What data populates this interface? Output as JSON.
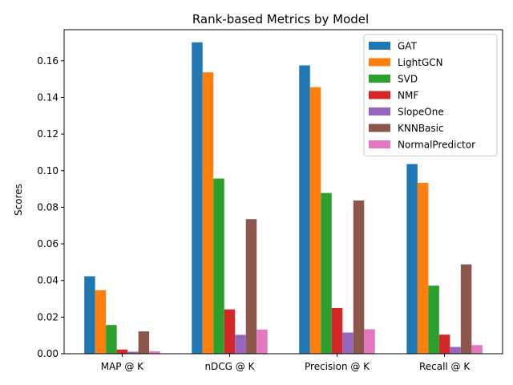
{
  "chart_data": {
    "type": "bar",
    "title": "Rank-based Metrics by Model",
    "xlabel": "",
    "ylabel": "Scores",
    "ylim": [
      0,
      0.177
    ],
    "yticks": [
      "0.00",
      "0.02",
      "0.04",
      "0.06",
      "0.08",
      "0.10",
      "0.12",
      "0.14",
      "0.16"
    ],
    "grid": false,
    "legend_position": "top-right",
    "categories": [
      "MAP @ K",
      "nDCG @ K",
      "Precision @ K",
      "Recall @ K"
    ],
    "series": [
      {
        "name": "GAT",
        "color": "#1f77b4",
        "values": [
          0.0423,
          0.1701,
          0.1575,
          0.1036
        ]
      },
      {
        "name": "LightGCN",
        "color": "#ff7f0e",
        "values": [
          0.0347,
          0.1537,
          0.1456,
          0.0934
        ]
      },
      {
        "name": "SVD",
        "color": "#2ca02c",
        "values": [
          0.0157,
          0.0957,
          0.0878,
          0.0372
        ]
      },
      {
        "name": "NMF",
        "color": "#d62728",
        "values": [
          0.0023,
          0.0242,
          0.025,
          0.0104
        ]
      },
      {
        "name": "SlopeOne",
        "color": "#9467bd",
        "values": [
          0.0011,
          0.0103,
          0.0116,
          0.0037
        ]
      },
      {
        "name": "KNNBasic",
        "color": "#8c564b",
        "values": [
          0.0122,
          0.0735,
          0.0837,
          0.0488
        ]
      },
      {
        "name": "NormalPredictor",
        "color": "#e377c2",
        "values": [
          0.0013,
          0.0132,
          0.0134,
          0.0047
        ]
      }
    ]
  }
}
